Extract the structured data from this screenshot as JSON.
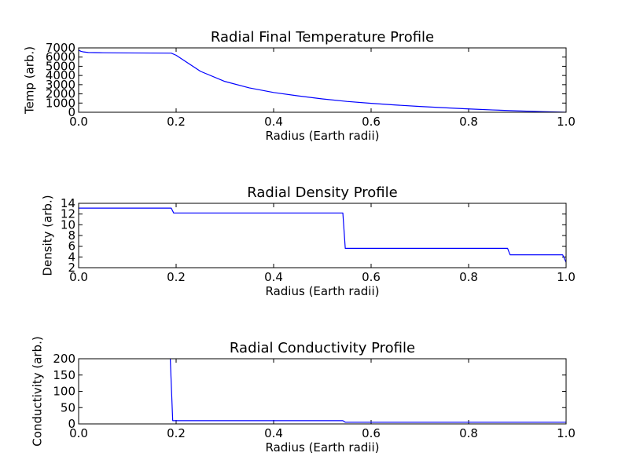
{
  "chart_data": [
    {
      "type": "line",
      "title": "Radial Final Temperature Profile",
      "xlabel": "Radius (Earth radii)",
      "ylabel": "Temp (arb.)",
      "xlim": [
        0.0,
        1.0
      ],
      "ylim": [
        0,
        7000
      ],
      "xticks": [
        0.0,
        0.2,
        0.4,
        0.6,
        0.8,
        1.0
      ],
      "xtick_labels": [
        "0.0",
        "0.2",
        "0.4",
        "0.6",
        "0.8",
        "1.0"
      ],
      "yticks": [
        0,
        1000,
        2000,
        3000,
        4000,
        5000,
        6000,
        7000
      ],
      "ytick_labels": [
        "0",
        "1000",
        "2000",
        "3000",
        "4000",
        "5000",
        "6000",
        "7000"
      ],
      "grid": false,
      "series": [
        {
          "color": "#0000ff",
          "x": [
            0.0,
            0.005,
            0.01,
            0.02,
            0.05,
            0.1,
            0.15,
            0.19,
            0.2,
            0.25,
            0.3,
            0.35,
            0.4,
            0.45,
            0.5,
            0.55,
            0.6,
            0.65,
            0.7,
            0.75,
            0.8,
            0.85,
            0.9,
            0.95,
            1.0
          ],
          "y": [
            6750,
            6620,
            6560,
            6500,
            6470,
            6450,
            6440,
            6430,
            6200,
            4450,
            3350,
            2650,
            2150,
            1780,
            1450,
            1180,
            970,
            790,
            630,
            490,
            360,
            250,
            150,
            70,
            0
          ]
        }
      ]
    },
    {
      "type": "line",
      "title": "Radial Density Profile",
      "xlabel": "Radius (Earth radii)",
      "ylabel": "Density (arb.)",
      "xlim": [
        0.0,
        1.0
      ],
      "ylim": [
        2,
        14
      ],
      "xticks": [
        0.0,
        0.2,
        0.4,
        0.6,
        0.8,
        1.0
      ],
      "xtick_labels": [
        "0.0",
        "0.2",
        "0.4",
        "0.6",
        "0.8",
        "1.0"
      ],
      "yticks": [
        2,
        4,
        6,
        8,
        10,
        12,
        14
      ],
      "ytick_labels": [
        "2",
        "4",
        "6",
        "8",
        "10",
        "12",
        "14"
      ],
      "grid": false,
      "series": [
        {
          "color": "#0000ff",
          "x": [
            0.0,
            0.19,
            0.195,
            0.542,
            0.547,
            0.88,
            0.885,
            0.993,
            1.0
          ],
          "y": [
            13.1,
            13.1,
            12.2,
            12.2,
            5.6,
            5.6,
            4.4,
            4.4,
            3.0
          ]
        }
      ]
    },
    {
      "type": "line",
      "title": "Radial Conductivity Profile",
      "xlabel": "Radius (Earth radii)",
      "ylabel": "Conductivity (arb.)",
      "xlim": [
        0.0,
        1.0
      ],
      "ylim": [
        0,
        200
      ],
      "xticks": [
        0.0,
        0.2,
        0.4,
        0.6,
        0.8,
        1.0
      ],
      "xtick_labels": [
        "0.0",
        "0.2",
        "0.4",
        "0.6",
        "0.8",
        "1.0"
      ],
      "yticks": [
        0,
        50,
        100,
        150,
        200
      ],
      "ytick_labels": [
        "0",
        "50",
        "100",
        "150",
        "200"
      ],
      "grid": false,
      "series": [
        {
          "color": "#0000ff",
          "x": [
            0.188,
            0.193,
            0.542,
            0.547,
            1.0
          ],
          "y": [
            200,
            10,
            10,
            5,
            5
          ]
        }
      ]
    }
  ]
}
